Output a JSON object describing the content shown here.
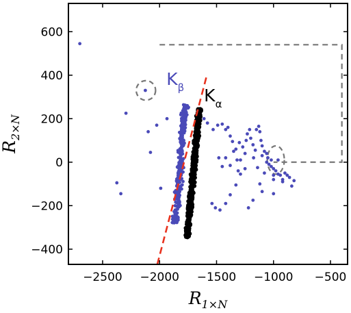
{
  "chart_data": {
    "type": "scatter",
    "title": "",
    "xlabel": {
      "base": "R",
      "sub": "1×N"
    },
    "ylabel": {
      "base": "R",
      "sub": "2×N"
    },
    "xlim": [
      -2800,
      -350
    ],
    "ylim": [
      -470,
      730
    ],
    "xticks": [
      -2500,
      -2000,
      -1500,
      -1000,
      -500
    ],
    "xtick_labels": [
      "−2500",
      "−2000",
      "−1500",
      "−1000",
      "−500"
    ],
    "yticks": [
      600,
      400,
      200,
      0,
      -200,
      -400
    ],
    "ytick_labels": [
      "600",
      "400",
      "200",
      "0",
      "−200",
      "−400"
    ],
    "grid": false,
    "colors": {
      "kbeta": "#4a4ab8",
      "kalpha": "#000000",
      "fit_line": "#e8321e",
      "dashed": "#777777"
    },
    "series": [
      {
        "name": "Kβ",
        "color": "#4a4ab8",
        "band": {
          "x_bottom": -1860,
          "x_top": -1775,
          "y_bottom": -280,
          "y_top": 265,
          "half_width": 45,
          "n": 300
        },
        "extra_points": [
          [
            -2700,
            545
          ],
          [
            -2125,
            330
          ],
          [
            -2295,
            225
          ],
          [
            -2375,
            -95
          ],
          [
            -2340,
            -145
          ],
          [
            -2100,
            140
          ],
          [
            -2080,
            45
          ],
          [
            -1990,
            -120
          ],
          [
            -2025,
            170
          ],
          [
            -1935,
            200
          ],
          [
            -1610,
            200
          ],
          [
            -1580,
            180
          ],
          [
            -1530,
            150
          ],
          [
            -1490,
            170
          ],
          [
            -1450,
            175
          ],
          [
            -1420,
            150
          ],
          [
            -1400,
            160
          ],
          [
            -1380,
            120
          ],
          [
            -1360,
            95
          ],
          [
            -1330,
            60
          ],
          [
            -1300,
            90
          ],
          [
            -1270,
            70
          ],
          [
            -1250,
            40
          ],
          [
            -1240,
            100
          ],
          [
            -1230,
            130
          ],
          [
            -1210,
            150
          ],
          [
            -1200,
            110
          ],
          [
            -1180,
            80
          ],
          [
            -1160,
            55
          ],
          [
            -1150,
            150
          ],
          [
            -1130,
            165
          ],
          [
            -1120,
            140
          ],
          [
            -1110,
            100
          ],
          [
            -1100,
            75
          ],
          [
            -1080,
            50
          ],
          [
            -1060,
            40
          ],
          [
            -1050,
            20
          ],
          [
            -1040,
            -10
          ],
          [
            -1020,
            -20
          ],
          [
            -1000,
            -30
          ],
          [
            -980,
            -40
          ],
          [
            -960,
            -55
          ],
          [
            -940,
            -60
          ],
          [
            -920,
            -80
          ],
          [
            -900,
            -50
          ],
          [
            -880,
            -60
          ],
          [
            -860,
            -70
          ],
          [
            -840,
            -110
          ],
          [
            -820,
            -85
          ],
          [
            -1250,
            -30
          ],
          [
            -1290,
            -55
          ],
          [
            -1330,
            -105
          ],
          [
            -1380,
            -150
          ],
          [
            -1420,
            -190
          ],
          [
            -1470,
            -220
          ],
          [
            -1510,
            -210
          ],
          [
            -1540,
            -190
          ],
          [
            -1480,
            20
          ],
          [
            -1450,
            -20
          ],
          [
            -1420,
            20
          ],
          [
            -1380,
            -15
          ],
          [
            -1320,
            10
          ],
          [
            -1080,
            -50
          ],
          [
            -1000,
            -60
          ],
          [
            -1000,
            -80
          ],
          [
            -920,
            -90
          ],
          [
            -1100,
            -135
          ],
          [
            -1120,
            -100
          ],
          [
            -1000,
            -145
          ],
          [
            -1180,
            -175
          ],
          [
            -1220,
            -210
          ],
          [
            -1290,
            10
          ],
          [
            -1350,
            50
          ],
          [
            -1310,
            -40
          ],
          [
            -1140,
            -25
          ],
          [
            -1175,
            20
          ],
          [
            -1100,
            30
          ],
          [
            -1060,
            0
          ],
          [
            -1050,
            20
          ],
          [
            -1020,
            10
          ],
          [
            -960,
            10
          ]
        ]
      },
      {
        "name": "Kα",
        "color": "#000000",
        "band": {
          "x_bottom": -1760,
          "x_top": -1650,
          "y_bottom": -345,
          "y_top": 245,
          "half_width": 28,
          "n": 650
        }
      }
    ],
    "fit_line": {
      "color": "#e8321e",
      "style": "dashed",
      "points": [
        [
          -2020,
          -470
        ],
        [
          -1590,
          390
        ]
      ]
    },
    "dashed_region": {
      "color": "#777777",
      "points": [
        [
          -2000,
          540
        ],
        [
          -400,
          540
        ],
        [
          -400,
          0
        ],
        [
          -1000,
          0
        ]
      ]
    },
    "dashed_circles": [
      {
        "center": [
          -2120,
          330
        ],
        "rx": 85,
        "ry": 45
      },
      {
        "center": [
          -980,
          10
        ],
        "rx": 75,
        "ry": 65
      }
    ],
    "annotations": [
      {
        "text": "K",
        "sub": "β",
        "color": "#4a4ab8",
        "at": [
          -1940,
          355
        ]
      },
      {
        "text": "K",
        "sub": "α",
        "color": "#000000",
        "at": [
          -1610,
          280
        ]
      }
    ]
  }
}
